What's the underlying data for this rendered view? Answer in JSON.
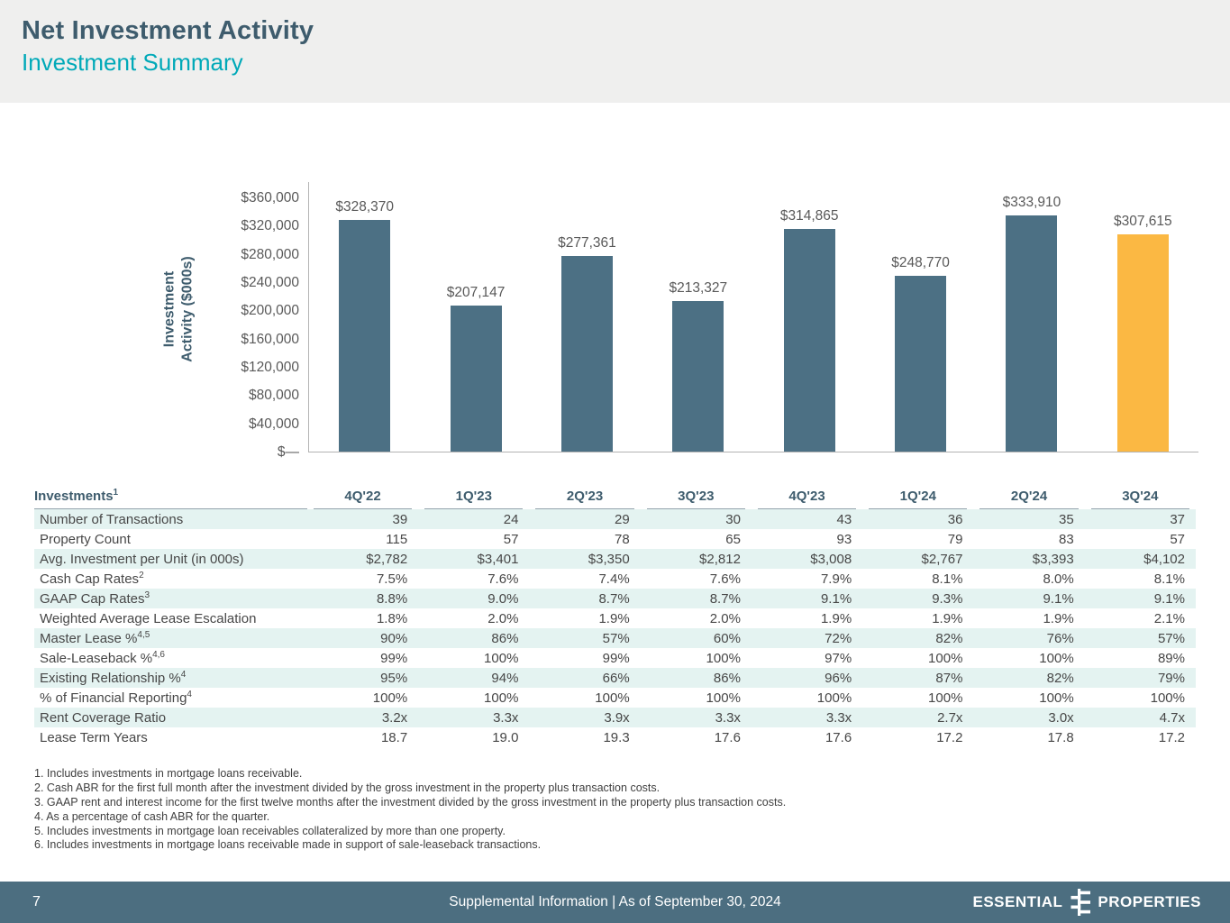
{
  "header": {
    "title": "Net Investment Activity",
    "subtitle": "Investment Summary"
  },
  "chart_data": {
    "type": "bar",
    "title": "",
    "ylabel_lines": [
      "Investment",
      "Activity ($000s)"
    ],
    "categories": [
      "4Q'22",
      "1Q'23",
      "2Q'23",
      "3Q'23",
      "4Q'23",
      "1Q'24",
      "2Q'24",
      "3Q'24"
    ],
    "values": [
      328370,
      207147,
      277361,
      213327,
      314865,
      248770,
      333910,
      307615
    ],
    "value_labels": [
      "$328,370",
      "$207,147",
      "$277,361",
      "$213,327",
      "$314,865",
      "$248,770",
      "$333,910",
      "$307,615"
    ],
    "yticks": [
      {
        "label": "$360,000",
        "value": 360000
      },
      {
        "label": "$320,000",
        "value": 320000
      },
      {
        "label": "$280,000",
        "value": 280000
      },
      {
        "label": "$240,000",
        "value": 240000
      },
      {
        "label": "$200,000",
        "value": 200000
      },
      {
        "label": "$160,000",
        "value": 160000
      },
      {
        "label": "$120,000",
        "value": 120000
      },
      {
        "label": "$80,000",
        "value": 80000
      },
      {
        "label": "$40,000",
        "value": 40000
      },
      {
        "label": "$—",
        "value": 0
      }
    ],
    "ylim": [
      0,
      360000
    ],
    "grid": false,
    "legend": "none",
    "bar_color": "#4c7084",
    "highlight_color": "#fbb843",
    "highlight_index": 7
  },
  "table": {
    "corner_label": "Investments",
    "corner_sup": "1",
    "columns": [
      "4Q'22",
      "1Q'23",
      "2Q'23",
      "3Q'23",
      "4Q'23",
      "1Q'24",
      "2Q'24",
      "3Q'24"
    ],
    "rows": [
      {
        "label": "Number of Transactions",
        "sup": "",
        "values": [
          "39",
          "24",
          "29",
          "30",
          "43",
          "36",
          "35",
          "37"
        ]
      },
      {
        "label": "Property Count",
        "sup": "",
        "values": [
          "115",
          "57",
          "78",
          "65",
          "93",
          "79",
          "83",
          "57"
        ]
      },
      {
        "label": "Avg. Investment per Unit (in 000s)",
        "sup": "",
        "values": [
          "$2,782",
          "$3,401",
          "$3,350",
          "$2,812",
          "$3,008",
          "$2,767",
          "$3,393",
          "$4,102"
        ]
      },
      {
        "label": "Cash Cap Rates",
        "sup": "2",
        "values": [
          "7.5%",
          "7.6%",
          "7.4%",
          "7.6%",
          "7.9%",
          "8.1%",
          "8.0%",
          "8.1%"
        ]
      },
      {
        "label": "GAAP Cap Rates",
        "sup": "3",
        "values": [
          "8.8%",
          "9.0%",
          "8.7%",
          "8.7%",
          "9.1%",
          "9.3%",
          "9.1%",
          "9.1%"
        ]
      },
      {
        "label": "Weighted Average Lease Escalation",
        "sup": "",
        "values": [
          "1.8%",
          "2.0%",
          "1.9%",
          "2.0%",
          "1.9%",
          "1.9%",
          "1.9%",
          "2.1%"
        ]
      },
      {
        "label": "Master Lease %",
        "sup": "4,5",
        "values": [
          "90%",
          "86%",
          "57%",
          "60%",
          "72%",
          "82%",
          "76%",
          "57%"
        ]
      },
      {
        "label": "Sale-Leaseback %",
        "sup": "4,6",
        "values": [
          "99%",
          "100%",
          "99%",
          "100%",
          "97%",
          "100%",
          "100%",
          "89%"
        ]
      },
      {
        "label": "Existing Relationship %",
        "sup": "4",
        "values": [
          "95%",
          "94%",
          "66%",
          "86%",
          "96%",
          "87%",
          "82%",
          "79%"
        ]
      },
      {
        "label": "% of Financial Reporting",
        "sup": "4",
        "values": [
          "100%",
          "100%",
          "100%",
          "100%",
          "100%",
          "100%",
          "100%",
          "100%"
        ]
      },
      {
        "label": "Rent Coverage Ratio",
        "sup": "",
        "values": [
          "3.2x",
          "3.3x",
          "3.9x",
          "3.3x",
          "3.3x",
          "2.7x",
          "3.0x",
          "4.7x"
        ]
      },
      {
        "label": "Lease Term Years",
        "sup": "",
        "values": [
          "18.7",
          "19.0",
          "19.3",
          "17.6",
          "17.6",
          "17.2",
          "17.8",
          "17.2"
        ]
      }
    ],
    "row_stripe_color": "#e4f3f1"
  },
  "footnotes": [
    "1. Includes investments in mortgage loans receivable.",
    "2. Cash ABR for the first full month after the investment divided by the gross investment in the property plus transaction costs.",
    "3. GAAP rent and interest income for the first twelve months after the investment divided by the gross investment in the property plus transaction costs.",
    "4. As a percentage of cash ABR for the quarter.",
    "5. Includes investments in mortgage loan receivables collateralized by more than one property.",
    "6. Includes investments in mortgage loans receivable made in support of sale-leaseback transactions."
  ],
  "footer": {
    "page_number": "7",
    "center_text": "Supplemental Information |  As of September 30, 2024",
    "brand_left": "ESSENTIAL",
    "brand_right": "PROPERTIES",
    "bg_color": "#4c6e80"
  },
  "colors": {
    "title": "#3e5c6d",
    "subtitle_accent": "#00a9b8",
    "bar": "#4c7084",
    "bar_highlight": "#fbb843",
    "table_stripe": "#e4f3f1",
    "footer_bg": "#4c6e80",
    "header_band_bg": "#efefee"
  }
}
